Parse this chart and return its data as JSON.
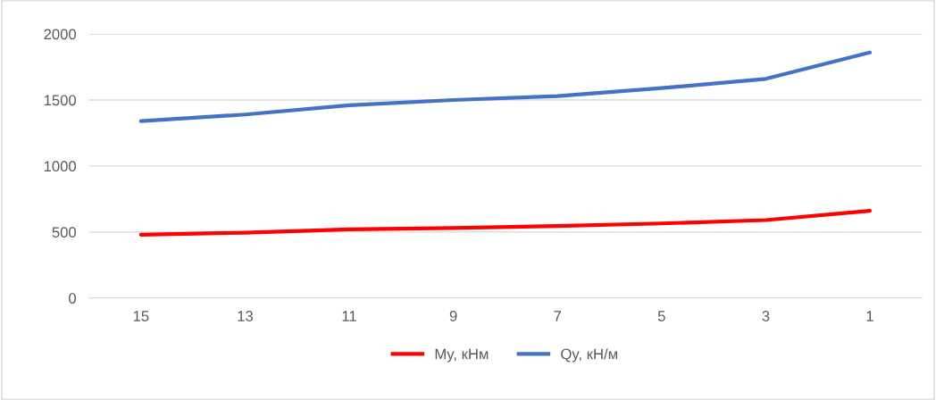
{
  "chart_data": {
    "type": "line",
    "categories": [
      "15",
      "13",
      "11",
      "9",
      "7",
      "5",
      "3",
      "1"
    ],
    "series": [
      {
        "name": "My, кНм",
        "color": "#ff0000",
        "values": [
          480,
          495,
          520,
          530,
          545,
          565,
          590,
          660
        ]
      },
      {
        "name": "Qy, кН/м",
        "color": "#4472c4",
        "values": [
          1340,
          1390,
          1460,
          1500,
          1530,
          1590,
          1660,
          1860
        ]
      }
    ],
    "ylim": [
      0,
      2000
    ],
    "yticks": [
      0,
      500,
      1000,
      1500,
      2000
    ],
    "grid": "y",
    "legend": "bottom",
    "marker": "none",
    "line_style": "solid"
  }
}
